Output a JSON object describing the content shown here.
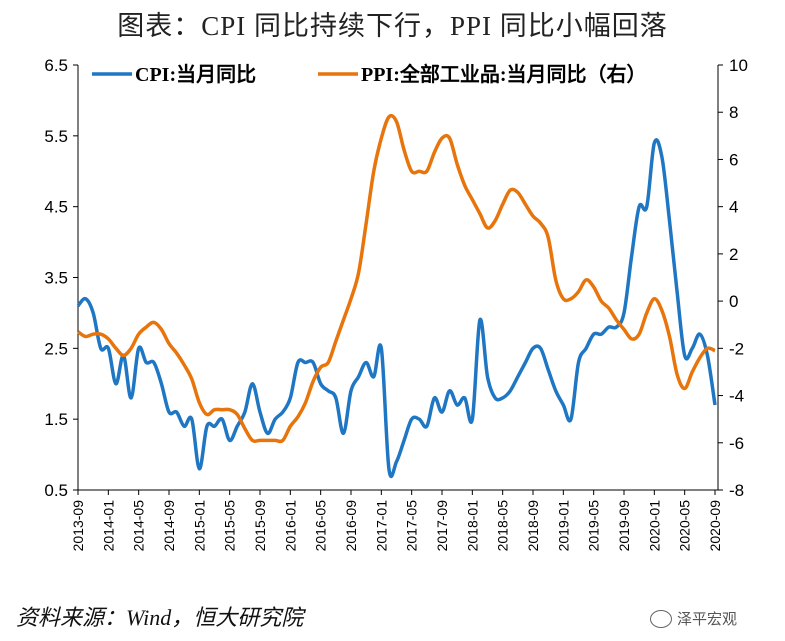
{
  "title": "图表：CPI 同比持续下行，PPI 同比小幅回落",
  "source": "资料来源：Wind，恒大研究院",
  "logo_text": "泽平宏观",
  "chart_data": {
    "type": "line",
    "x": [
      "2013-09",
      "2013-10",
      "2013-11",
      "2013-12",
      "2014-01",
      "2014-02",
      "2014-03",
      "2014-04",
      "2014-05",
      "2014-06",
      "2014-07",
      "2014-08",
      "2014-09",
      "2014-10",
      "2014-11",
      "2014-12",
      "2015-01",
      "2015-02",
      "2015-03",
      "2015-04",
      "2015-05",
      "2015-06",
      "2015-07",
      "2015-08",
      "2015-09",
      "2015-10",
      "2015-11",
      "2015-12",
      "2016-01",
      "2016-02",
      "2016-03",
      "2016-04",
      "2016-05",
      "2016-06",
      "2016-07",
      "2016-08",
      "2016-09",
      "2016-10",
      "2016-11",
      "2016-12",
      "2017-01",
      "2017-02",
      "2017-03",
      "2017-04",
      "2017-05",
      "2017-06",
      "2017-07",
      "2017-08",
      "2017-09",
      "2017-10",
      "2017-11",
      "2017-12",
      "2018-01",
      "2018-02",
      "2018-03",
      "2018-04",
      "2018-05",
      "2018-06",
      "2018-07",
      "2018-08",
      "2018-09",
      "2018-10",
      "2018-11",
      "2018-12",
      "2019-01",
      "2019-02",
      "2019-03",
      "2019-04",
      "2019-05",
      "2019-06",
      "2019-07",
      "2019-08",
      "2019-09",
      "2019-10",
      "2019-11",
      "2019-12",
      "2020-01",
      "2020-02",
      "2020-03",
      "2020-04",
      "2020-05",
      "2020-06",
      "2020-07",
      "2020-08",
      "2020-09"
    ],
    "x_tick_labels": [
      "2013-09",
      "2014-01",
      "2014-05",
      "2014-09",
      "2015-01",
      "2015-05",
      "2015-09",
      "2016-01",
      "2016-05",
      "2016-09",
      "2017-01",
      "2017-05",
      "2017-09",
      "2018-01",
      "2018-05",
      "2018-09",
      "2019-01",
      "2019-05",
      "2019-09",
      "2020-01",
      "2020-05",
      "2020-09"
    ],
    "series": [
      {
        "name": "CPI:当月同比",
        "axis": "left",
        "color": "#1f77c4",
        "values": [
          3.1,
          3.2,
          3.0,
          2.5,
          2.5,
          2.0,
          2.4,
          1.8,
          2.5,
          2.3,
          2.3,
          2.0,
          1.6,
          1.6,
          1.4,
          1.5,
          0.8,
          1.4,
          1.4,
          1.5,
          1.2,
          1.4,
          1.6,
          2.0,
          1.6,
          1.3,
          1.5,
          1.6,
          1.8,
          2.3,
          2.3,
          2.3,
          2.0,
          1.9,
          1.8,
          1.3,
          1.9,
          2.1,
          2.3,
          2.1,
          2.5,
          0.8,
          0.9,
          1.2,
          1.5,
          1.5,
          1.4,
          1.8,
          1.6,
          1.9,
          1.7,
          1.8,
          1.5,
          2.9,
          2.1,
          1.8,
          1.8,
          1.9,
          2.1,
          2.3,
          2.5,
          2.5,
          2.2,
          1.9,
          1.7,
          1.5,
          2.3,
          2.5,
          2.7,
          2.7,
          2.8,
          2.8,
          3.0,
          3.8,
          4.5,
          4.5,
          5.4,
          5.2,
          4.3,
          3.3,
          2.4,
          2.5,
          2.7,
          2.4,
          1.7
        ]
      },
      {
        "name": "PPI:全部工业品:当月同比（右）",
        "axis": "right",
        "color": "#e8740c",
        "values": [
          -1.3,
          -1.5,
          -1.4,
          -1.4,
          -1.6,
          -2.0,
          -2.3,
          -2.0,
          -1.4,
          -1.1,
          -0.9,
          -1.2,
          -1.8,
          -2.2,
          -2.7,
          -3.3,
          -4.3,
          -4.8,
          -4.6,
          -4.6,
          -4.6,
          -4.8,
          -5.4,
          -5.9,
          -5.9,
          -5.9,
          -5.9,
          -5.9,
          -5.3,
          -4.9,
          -4.3,
          -3.4,
          -2.8,
          -2.6,
          -1.7,
          -0.8,
          0.1,
          1.2,
          3.3,
          5.5,
          6.9,
          7.8,
          7.6,
          6.4,
          5.5,
          5.5,
          5.5,
          6.3,
          6.9,
          6.9,
          5.8,
          4.9,
          4.3,
          3.7,
          3.1,
          3.4,
          4.1,
          4.7,
          4.6,
          4.1,
          3.6,
          3.3,
          2.7,
          0.9,
          0.1,
          0.1,
          0.4,
          0.9,
          0.6,
          0.0,
          -0.3,
          -0.8,
          -1.2,
          -1.6,
          -1.4,
          -0.5,
          0.1,
          -0.4,
          -1.5,
          -3.1,
          -3.7,
          -3.0,
          -2.4,
          -2.0,
          -2.1
        ]
      }
    ],
    "left_axis": {
      "ylim": [
        0.5,
        6.5
      ],
      "ticks": [
        "0.5",
        "1.5",
        "2.5",
        "3.5",
        "4.5",
        "5.5",
        "6.5"
      ]
    },
    "right_axis": {
      "ylim": [
        -8,
        10
      ],
      "ticks": [
        "-8",
        "-6",
        "-4",
        "-2",
        "0",
        "2",
        "4",
        "6",
        "8",
        "10"
      ]
    },
    "grid": false,
    "legend_position": "top"
  }
}
